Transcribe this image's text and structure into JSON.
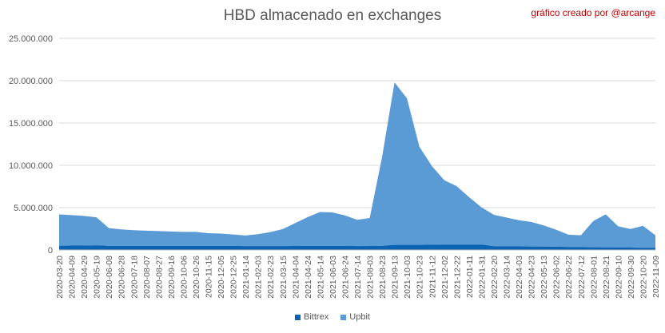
{
  "credit": "gráfico creado por @arcange",
  "chart_data": {
    "type": "area",
    "stacked": true,
    "title": "HBD almacenado en exchanges",
    "xlabel": "",
    "ylabel": "",
    "ylim": [
      0,
      25000000
    ],
    "yticks": [
      0,
      5000000,
      10000000,
      15000000,
      20000000,
      25000000
    ],
    "ytick_labels": [
      "0",
      "5.000.000",
      "10.000.000",
      "15.000.000",
      "20.000.000",
      "25.000.000"
    ],
    "grid": true,
    "legend_position": "bottom",
    "x_tick_labels": [
      "2020-03-20",
      "2020-04-09",
      "2020-04-29",
      "2020-05-19",
      "2020-06-08",
      "2020-06-28",
      "2020-07-18",
      "2020-08-07",
      "2020-08-27",
      "2020-09-16",
      "2020-10-06",
      "2020-10-26",
      "2020-11-15",
      "2020-12-05",
      "2020-12-25",
      "2021-01-14",
      "2021-02-03",
      "2021-02-23",
      "2021-03-15",
      "2021-04-04",
      "2021-04-24",
      "2021-05-14",
      "2021-06-03",
      "2021-06-24",
      "2021-07-14",
      "2021-08-03",
      "2021-08-23",
      "2021-09-13",
      "2021-10-03",
      "2021-10-23",
      "2021-11-12",
      "2021-12-02",
      "2021-12-22",
      "2022-01-11",
      "2022-01-31",
      "2022-02-20",
      "2022-03-14",
      "2022-04-03",
      "2022-04-23",
      "2022-05-13",
      "2022-06-02",
      "2022-06-22",
      "2022-07-12",
      "2022-08-01",
      "2022-08-21",
      "2022-09-10",
      "2022-09-30",
      "2022-10-20",
      "2022-11-09"
    ],
    "categories": [
      "2020-03-20",
      "2020-04-09",
      "2020-04-29",
      "2020-05-19",
      "2020-06-08",
      "2020-06-28",
      "2020-07-18",
      "2020-08-07",
      "2020-08-27",
      "2020-09-16",
      "2020-10-06",
      "2020-10-26",
      "2020-11-15",
      "2020-12-05",
      "2020-12-25",
      "2021-01-14",
      "2021-02-03",
      "2021-02-23",
      "2021-03-15",
      "2021-04-04",
      "2021-04-24",
      "2021-05-14",
      "2021-06-03",
      "2021-06-24",
      "2021-07-14",
      "2021-08-03",
      "2021-08-23",
      "2021-09-13",
      "2021-10-03",
      "2021-10-23",
      "2021-11-12",
      "2021-12-02",
      "2021-12-22",
      "2022-01-11",
      "2022-01-31",
      "2022-02-20",
      "2022-03-14",
      "2022-04-03",
      "2022-04-23",
      "2022-05-13",
      "2022-06-02",
      "2022-06-22",
      "2022-07-12",
      "2022-08-01",
      "2022-08-21",
      "2022-09-10",
      "2022-09-30",
      "2022-10-20",
      "2022-11-09"
    ],
    "series": [
      {
        "name": "Bittrex",
        "color": "#0b63b3",
        "values": [
          500000,
          520000,
          520000,
          560000,
          480000,
          480000,
          480000,
          480000,
          480000,
          480000,
          480000,
          480000,
          480000,
          480000,
          480000,
          460000,
          460000,
          460000,
          460000,
          470000,
          480000,
          480000,
          480000,
          480000,
          460000,
          470000,
          500000,
          600000,
          600000,
          600000,
          620000,
          640000,
          640000,
          640000,
          640000,
          450000,
          430000,
          420000,
          410000,
          400000,
          390000,
          350000,
          330000,
          320000,
          310000,
          300000,
          280000,
          250000,
          230000
        ]
      },
      {
        "name": "Upbit",
        "color": "#5b9bd5",
        "values": [
          3700000,
          3600000,
          3500000,
          3300000,
          2100000,
          1950000,
          1850000,
          1800000,
          1750000,
          1700000,
          1650000,
          1650000,
          1500000,
          1450000,
          1350000,
          1250000,
          1400000,
          1650000,
          2000000,
          2700000,
          3400000,
          4000000,
          3950000,
          3600000,
          3100000,
          3300000,
          10500000,
          19200000,
          17300000,
          11600000,
          9300000,
          7600000,
          6900000,
          5600000,
          4400000,
          3700000,
          3400000,
          3100000,
          2900000,
          2500000,
          2000000,
          1450000,
          1400000,
          3100000,
          3900000,
          2500000,
          2200000,
          2600000,
          1500000
        ]
      }
    ]
  }
}
